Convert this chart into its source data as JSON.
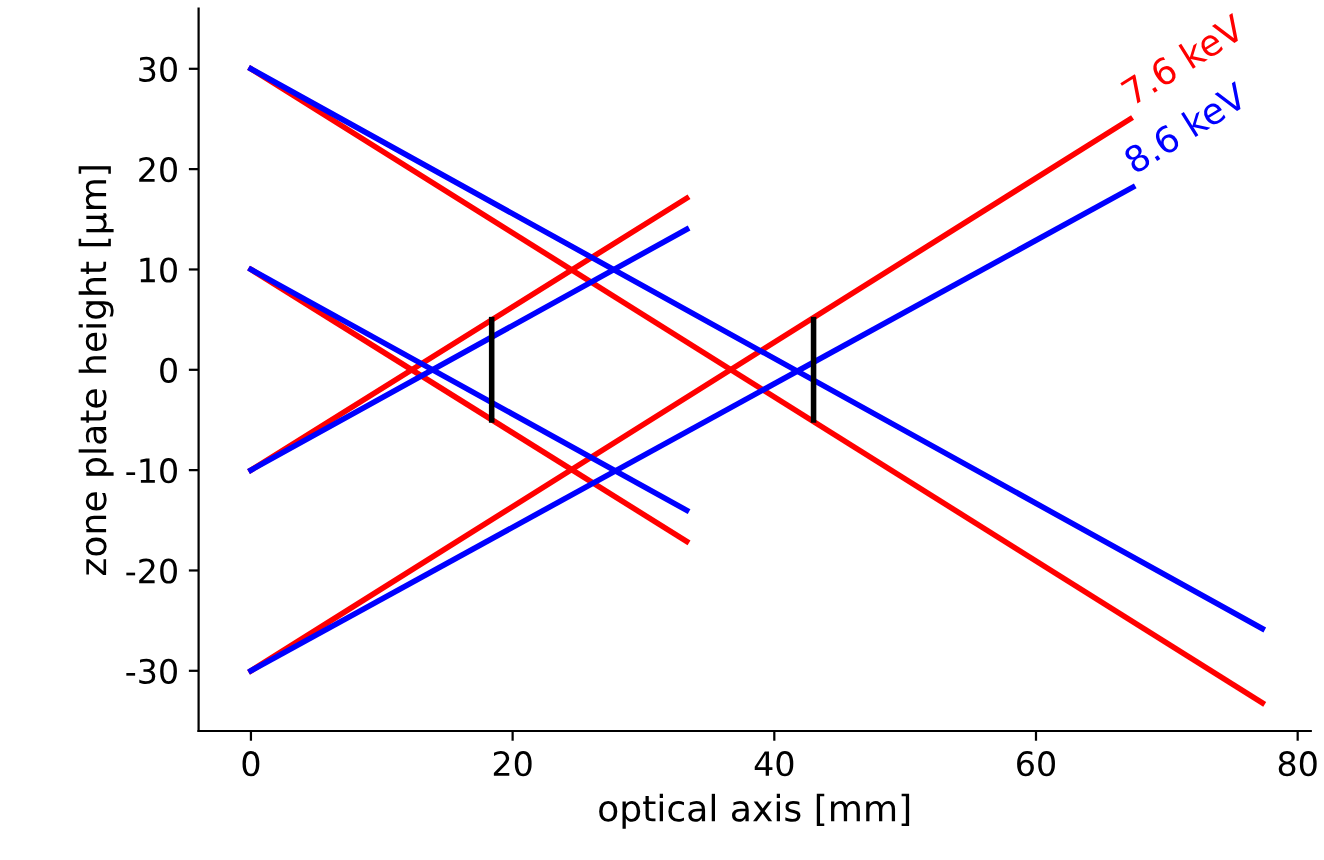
{
  "chart_data": {
    "type": "line",
    "xlabel": "optical axis [mm]",
    "ylabel": "zone plate height [µm]",
    "xlim": [
      -4,
      81
    ],
    "ylim": [
      -36,
      36
    ],
    "xticks": [
      0,
      20,
      40,
      60,
      80
    ],
    "yticks": [
      -30,
      -20,
      -10,
      0,
      10,
      20,
      30
    ],
    "grid": false,
    "legend": false,
    "marker": "none",
    "line_style": "solid",
    "series": [
      {
        "name": "7.6 keV",
        "color": "#ff0000",
        "x": [
          0,
          67.2
        ],
        "values": [
          -30,
          25
        ]
      },
      {
        "color": "#ff0000",
        "x": [
          0,
          77.3
        ],
        "values": [
          30,
          -33.2
        ]
      },
      {
        "color": "#ff0000",
        "x": [
          0,
          33.3
        ],
        "values": [
          10,
          -17.1
        ]
      },
      {
        "color": "#ff0000",
        "x": [
          0,
          33.3
        ],
        "values": [
          -10,
          17.1
        ]
      },
      {
        "name": "8.6 keV",
        "color": "#0000ff",
        "x": [
          0,
          67.4
        ],
        "values": [
          -30,
          18.2
        ]
      },
      {
        "color": "#0000ff",
        "x": [
          0,
          77.3
        ],
        "values": [
          30,
          -25.8
        ]
      },
      {
        "color": "#0000ff",
        "x": [
          0,
          33.3
        ],
        "values": [
          10,
          -14
        ]
      },
      {
        "color": "#0000ff",
        "x": [
          0,
          33.3
        ],
        "values": [
          -10,
          14
        ]
      },
      {
        "color": "#000000",
        "x": [
          18.4,
          18.4
        ],
        "values": [
          -5,
          5
        ]
      },
      {
        "color": "#000000",
        "x": [
          43,
          43
        ],
        "values": [
          -5,
          5
        ]
      }
    ]
  }
}
